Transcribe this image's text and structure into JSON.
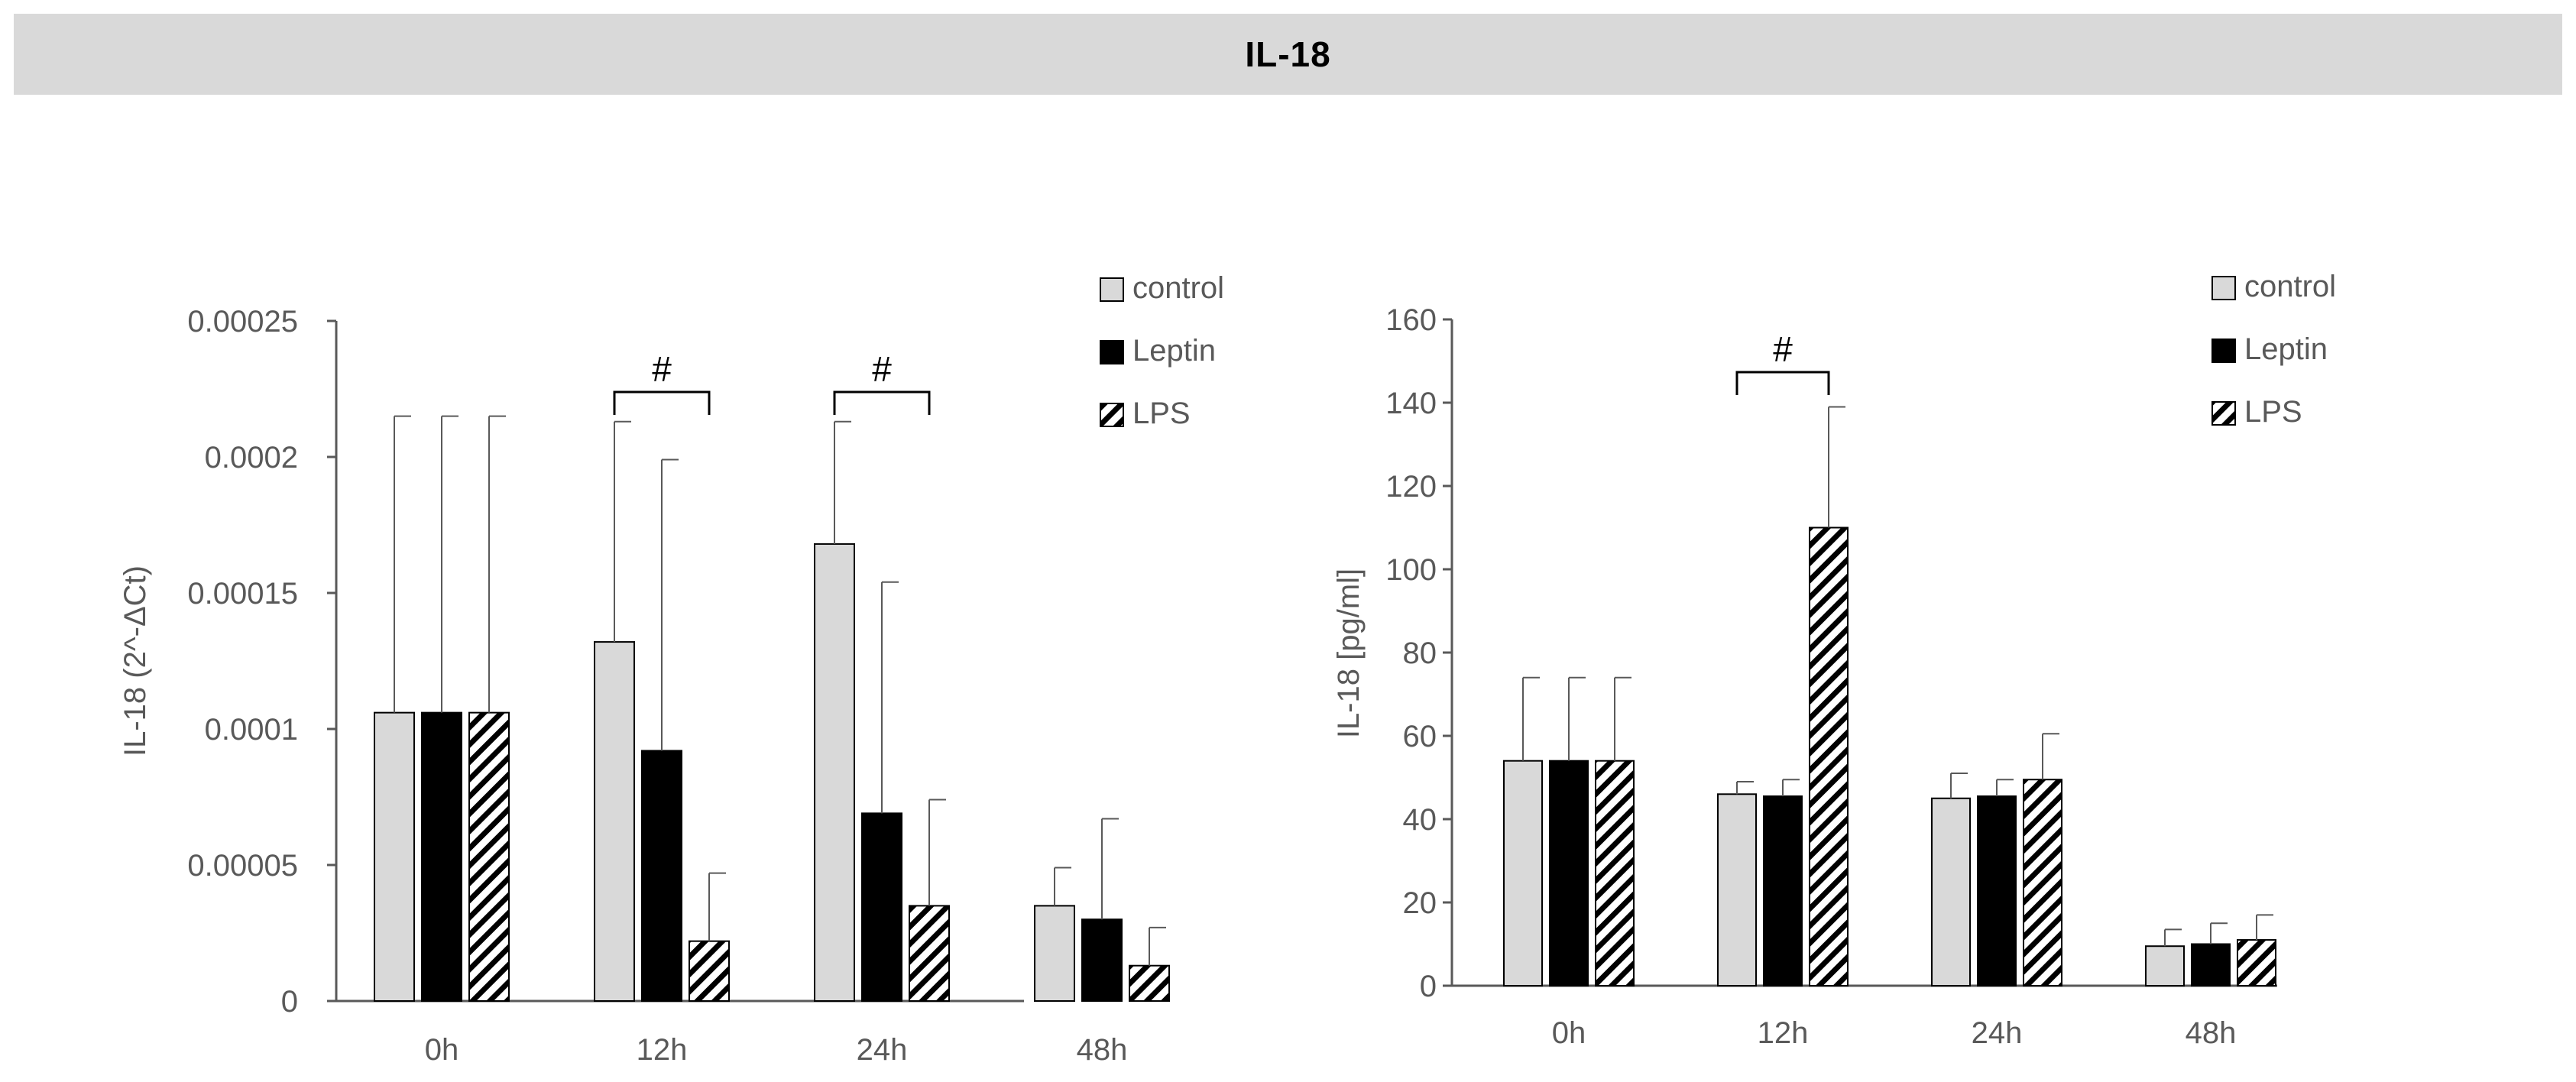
{
  "figure": {
    "title": "IL-18"
  },
  "colors": {
    "control": "#d9d9d9",
    "leptin": "#000000",
    "lps_fill": "#ffffff",
    "lps_hatch": "#000000",
    "axis": "#595959",
    "header": "#d9d9d9"
  },
  "chart_data": [
    {
      "type": "bar",
      "title": "",
      "xlabel": "",
      "ylabel": "IL-18  (2^-ΔCt)",
      "ylim": [
        0,
        0.00025
      ],
      "yticks": [
        0,
        5e-05,
        0.0001,
        0.00015,
        0.0002,
        0.00025
      ],
      "ytick_labels": [
        "0",
        "0.00005",
        "0.0001",
        "0.00015",
        "0.0002",
        "0.00025"
      ],
      "categories": [
        "0h",
        "12h",
        "24h",
        "48h"
      ],
      "legend_position": "top-right",
      "series": [
        {
          "name": "control",
          "values": [
            0.000106,
            0.000132,
            0.000168,
            3.5e-05
          ],
          "errors": [
            0.000109,
            8.1e-05,
            4.5e-05,
            1.4e-05
          ]
        },
        {
          "name": "Leptin",
          "values": [
            0.000106,
            9.2e-05,
            6.9e-05,
            3e-05
          ],
          "errors": [
            0.000109,
            0.000107,
            8.5e-05,
            3.7e-05
          ]
        },
        {
          "name": "LPS",
          "values": [
            0.000106,
            2.2e-05,
            3.5e-05,
            1.3e-05
          ],
          "errors": [
            0.000109,
            2.5e-05,
            3.9e-05,
            1.4e-05
          ]
        }
      ],
      "annotations": [
        {
          "text": "#",
          "category": "12h"
        },
        {
          "text": "#",
          "category": "24h"
        }
      ]
    },
    {
      "type": "bar",
      "title": "",
      "xlabel": "",
      "ylabel": "IL-18 [pg/ml]",
      "ylim": [
        0,
        160
      ],
      "yticks": [
        0,
        20,
        40,
        60,
        80,
        100,
        120,
        140,
        160
      ],
      "ytick_labels": [
        "0",
        "20",
        "40",
        "60",
        "80",
        "100",
        "120",
        "140",
        "160"
      ],
      "categories": [
        "0h",
        "12h",
        "24h",
        "48h"
      ],
      "legend_position": "top-right",
      "series": [
        {
          "name": "control",
          "values": [
            54,
            46,
            45,
            9.5
          ],
          "errors": [
            20,
            3,
            6,
            4
          ]
        },
        {
          "name": "Leptin",
          "values": [
            54,
            45.5,
            45.5,
            10
          ],
          "errors": [
            20,
            4,
            4,
            5
          ]
        },
        {
          "name": "LPS",
          "values": [
            54,
            110,
            49.5,
            11
          ],
          "errors": [
            20,
            29,
            11,
            6
          ]
        }
      ],
      "annotations": [
        {
          "text": "#",
          "category": "12h"
        }
      ]
    }
  ]
}
